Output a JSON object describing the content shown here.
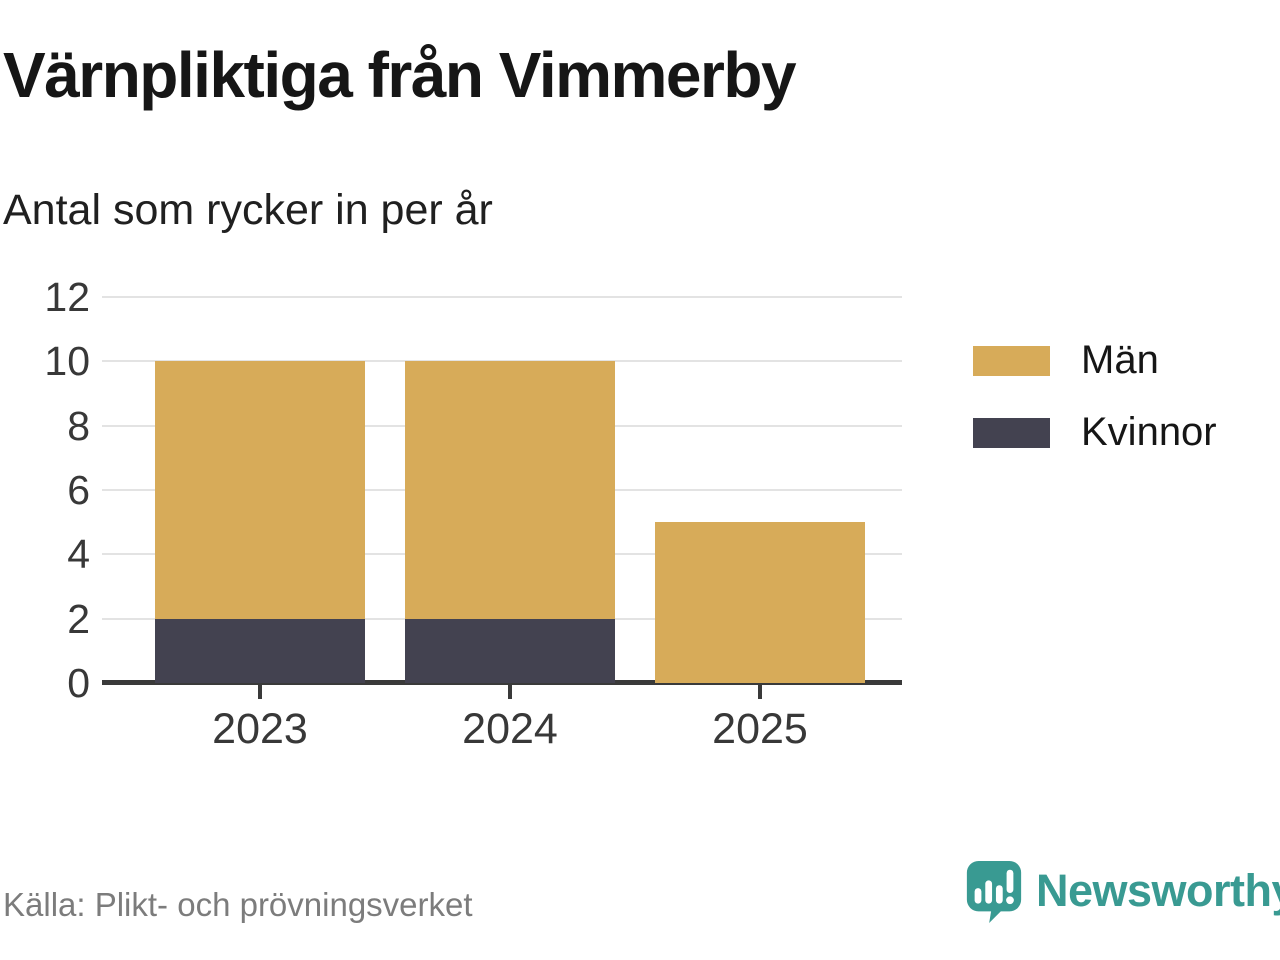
{
  "header": {
    "title": "Värnpliktiga från Vimmerby",
    "subtitle": "Antal som rycker in per år"
  },
  "chart_data": {
    "type": "bar",
    "stacked": true,
    "title": "Värnpliktiga från Vimmerby",
    "subtitle": "Antal som rycker in per år",
    "categories": [
      "2023",
      "2024",
      "2025"
    ],
    "series": [
      {
        "name": "Kvinnor",
        "color": "#434250",
        "values": [
          2,
          2,
          0
        ]
      },
      {
        "name": "Män",
        "color": "#d7ab59",
        "values": [
          8,
          8,
          5
        ]
      }
    ],
    "totals": [
      10,
      10,
      5
    ],
    "xlabel": "",
    "ylabel": "",
    "ylim": [
      0,
      12
    ],
    "yticks": [
      0,
      2,
      4,
      6,
      8,
      10,
      12
    ],
    "grid": true,
    "legend_position": "right"
  },
  "legend": {
    "items": [
      {
        "label": "Män",
        "color": "#d7ab59"
      },
      {
        "label": "Kvinnor",
        "color": "#434250"
      }
    ]
  },
  "footer": {
    "source": "Källa: Plikt- och prövningsverket",
    "brand": "Newsworthy",
    "brand_color": "#399a92"
  }
}
